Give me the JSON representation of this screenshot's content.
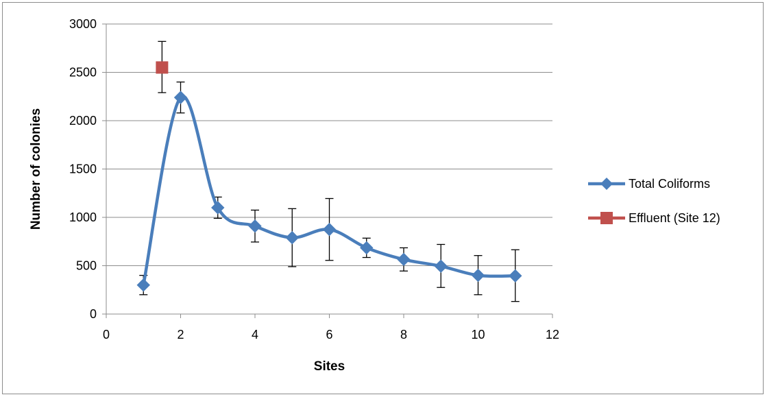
{
  "chart_data": {
    "type": "scatter",
    "title": "",
    "xlabel": "Sites",
    "ylabel": "Number of colonies",
    "xlim": [
      0,
      12
    ],
    "ylim": [
      0,
      3000
    ],
    "xticks": [
      0,
      2,
      4,
      6,
      8,
      10,
      12
    ],
    "yticks": [
      0,
      500,
      1000,
      1500,
      2000,
      2500,
      3000
    ],
    "grid": "horizontal",
    "legend_position": "right",
    "series": [
      {
        "name": "Total Coliforms",
        "color": "#4a7ebb",
        "marker": "diamond",
        "smooth": true,
        "x": [
          1,
          2,
          3,
          4,
          5,
          6,
          7,
          8,
          9,
          10,
          11
        ],
        "y": [
          300,
          2240,
          1100,
          910,
          790,
          875,
          685,
          565,
          495,
          400,
          395
        ],
        "error_low": [
          200,
          2080,
          990,
          745,
          490,
          555,
          585,
          445,
          275,
          200,
          130
        ],
        "error_high": [
          400,
          2400,
          1210,
          1075,
          1090,
          1195,
          785,
          685,
          720,
          605,
          665
        ]
      },
      {
        "name": "Effluent (Site 12)",
        "color": "#c0504d",
        "marker": "square",
        "smooth": false,
        "x": [
          1.5
        ],
        "y": [
          2550
        ],
        "error_low": [
          2290
        ],
        "error_high": [
          2820
        ]
      }
    ]
  }
}
